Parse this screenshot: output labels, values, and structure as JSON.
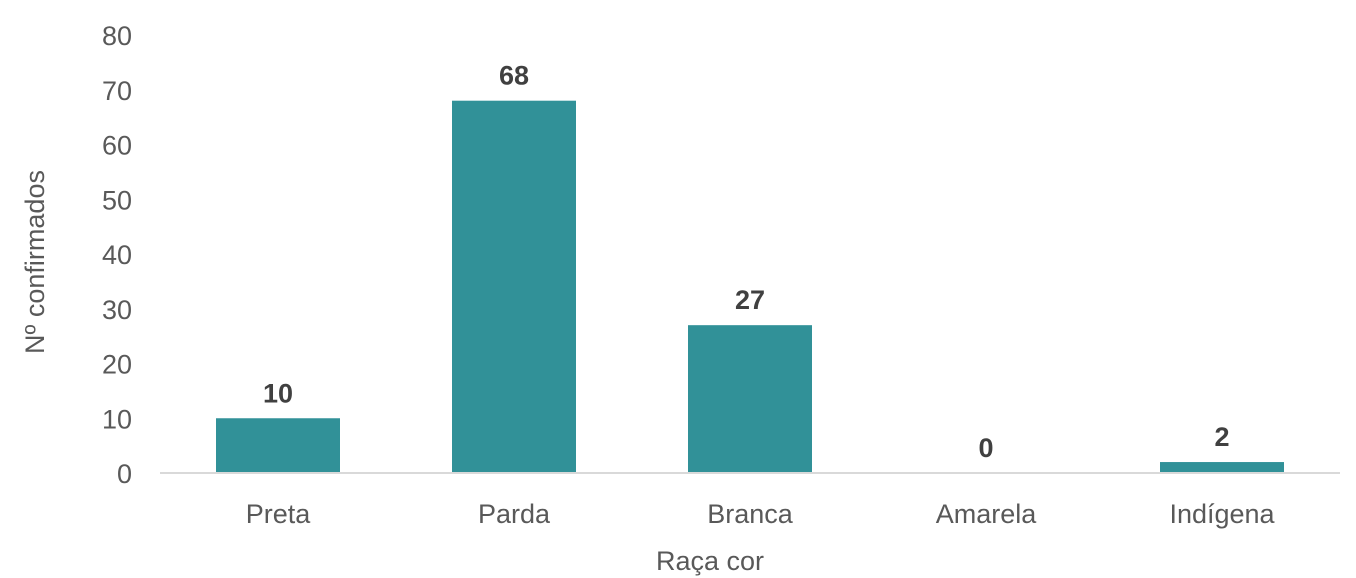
{
  "chart_data": {
    "type": "bar",
    "categories": [
      "Preta",
      "Parda",
      "Branca",
      "Amarela",
      "Indígena"
    ],
    "values": [
      10,
      68,
      27,
      0,
      2
    ],
    "data_labels": [
      "10",
      "68",
      "27",
      "0",
      "2"
    ],
    "title": "",
    "xlabel": "Raça cor",
    "ylabel": "Nº confirmados",
    "ylim": [
      0,
      80
    ],
    "yticks": [
      0,
      10,
      20,
      30,
      40,
      50,
      60,
      70,
      80
    ],
    "grid": false,
    "legend": "none",
    "bar_color": "#319198",
    "axis_color": "#d9d9d9"
  }
}
